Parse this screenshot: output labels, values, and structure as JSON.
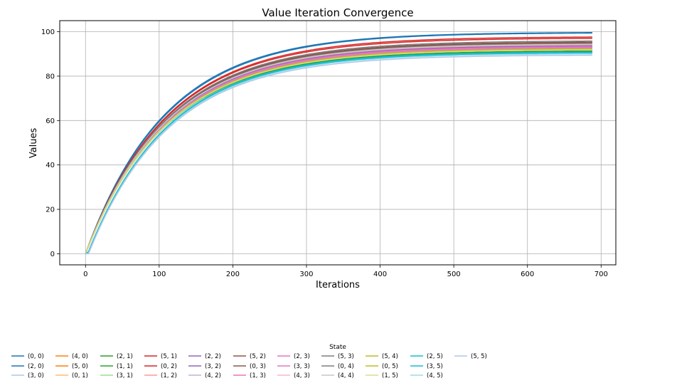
{
  "chart_data": {
    "type": "line",
    "title": "Value Iteration Convergence",
    "xlabel": "Iterations",
    "ylabel": "Values",
    "xlim": [
      -35,
      720
    ],
    "ylim": [
      -5,
      105
    ],
    "xticks": [
      0,
      100,
      200,
      300,
      400,
      500,
      600,
      700
    ],
    "yticks": [
      0,
      20,
      40,
      60,
      80,
      100
    ],
    "grid": true,
    "iterations": 688,
    "legend": {
      "title": "State",
      "placement": "bottom-center",
      "columns": 15
    },
    "series": [
      {
        "name": "(0, 0)",
        "color": "#1f77b4",
        "final": 99.8,
        "rate": 0.0092,
        "start": 0
      },
      {
        "name": "(2, 0)",
        "color": "#1f77b4",
        "final": 99.6,
        "rate": 0.0091,
        "start": 0
      },
      {
        "name": "(3, 0)",
        "color": "#aec7e8",
        "final": 90.5,
        "rate": 0.0092,
        "start": 4
      },
      {
        "name": "(4, 0)",
        "color": "#ff7f0e",
        "final": 93.6,
        "rate": 0.0091,
        "start": 0
      },
      {
        "name": "(5, 0)",
        "color": "#ff7f0e",
        "final": 92.8,
        "rate": 0.0091,
        "start": 0
      },
      {
        "name": "(0, 1)",
        "color": "#ffbb78",
        "final": 94.0,
        "rate": 0.0091,
        "start": 0
      },
      {
        "name": "(2, 1)",
        "color": "#2ca02c",
        "final": 91.5,
        "rate": 0.0092,
        "start": 0
      },
      {
        "name": "(1, 1)",
        "color": "#2ca02c",
        "final": 91.2,
        "rate": 0.0092,
        "start": 0
      },
      {
        "name": "(3, 1)",
        "color": "#98df8a",
        "final": 92.0,
        "rate": 0.0091,
        "start": 0
      },
      {
        "name": "(5, 1)",
        "color": "#d62728",
        "final": 97.8,
        "rate": 0.0091,
        "start": 0
      },
      {
        "name": "(0, 2)",
        "color": "#d62728",
        "final": 97.2,
        "rate": 0.0091,
        "start": 0
      },
      {
        "name": "(1, 2)",
        "color": "#ff9896",
        "final": 94.2,
        "rate": 0.0091,
        "start": 0
      },
      {
        "name": "(2, 2)",
        "color": "#9467bd",
        "final": 93.8,
        "rate": 0.0091,
        "start": 0
      },
      {
        "name": "(3, 2)",
        "color": "#9467bd",
        "final": 93.5,
        "rate": 0.0091,
        "start": 0
      },
      {
        "name": "(4, 2)",
        "color": "#c5b0d5",
        "final": 93.2,
        "rate": 0.0091,
        "start": 0
      },
      {
        "name": "(5, 2)",
        "color": "#8c564b",
        "final": 95.5,
        "rate": 0.0091,
        "start": 0
      },
      {
        "name": "(0, 3)",
        "color": "#8c564b",
        "final": 95.2,
        "rate": 0.0091,
        "start": 0
      },
      {
        "name": "(1, 3)",
        "color": "#e377c2",
        "final": 93.4,
        "rate": 0.0091,
        "start": 0
      },
      {
        "name": "(2, 3)",
        "color": "#e377c2",
        "final": 93.0,
        "rate": 0.0091,
        "start": 0
      },
      {
        "name": "(3, 3)",
        "color": "#e377c2",
        "final": 92.6,
        "rate": 0.0091,
        "start": 0
      },
      {
        "name": "(4, 3)",
        "color": "#f7b6d2",
        "final": 92.3,
        "rate": 0.0091,
        "start": 0
      },
      {
        "name": "(5, 3)",
        "color": "#7f7f7f",
        "final": 96.0,
        "rate": 0.0091,
        "start": 0
      },
      {
        "name": "(0, 4)",
        "color": "#7f7f7f",
        "final": 94.8,
        "rate": 0.0091,
        "start": 0
      },
      {
        "name": "(4, 4)",
        "color": "#c7c7c7",
        "final": 94.5,
        "rate": 0.0091,
        "start": 0
      },
      {
        "name": "(5, 4)",
        "color": "#bcbd22",
        "final": 92.5,
        "rate": 0.0091,
        "start": 0
      },
      {
        "name": "(0, 5)",
        "color": "#bcbd22",
        "final": 92.2,
        "rate": 0.0091,
        "start": 0
      },
      {
        "name": "(1, 5)",
        "color": "#dbdb8d",
        "final": 92.0,
        "rate": 0.0091,
        "start": 0
      },
      {
        "name": "(2, 5)",
        "color": "#17becf",
        "final": 91.0,
        "rate": 0.0092,
        "start": 3
      },
      {
        "name": "(3, 5)",
        "color": "#17becf",
        "final": 90.6,
        "rate": 0.0092,
        "start": 3
      },
      {
        "name": "(4, 5)",
        "color": "#9edae5",
        "final": 90.2,
        "rate": 0.0092,
        "start": 4
      },
      {
        "name": "(5, 5)",
        "color": "#aec7e8",
        "final": 89.6,
        "rate": 0.0092,
        "start": 4
      }
    ]
  }
}
